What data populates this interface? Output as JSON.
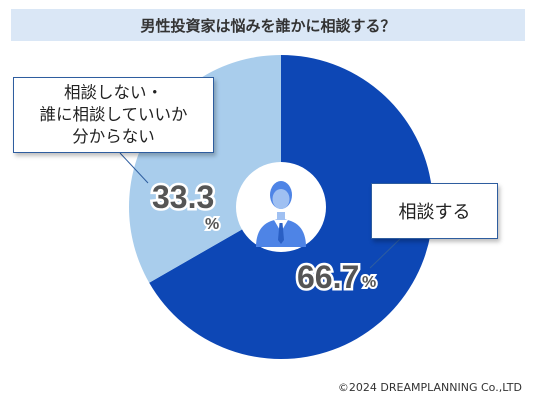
{
  "title": "男性投資家は悩みを誰かに相談する？",
  "chart_data": {
    "type": "pie",
    "slices": [
      {
        "label": "相談する",
        "value": 66.7,
        "value_text": "66.7",
        "unit": "%",
        "color": "#0d47b5"
      },
      {
        "label": "相談しない・\n誰に相談していいか\n分からない",
        "value": 33.3,
        "value_text": "33.3",
        "unit": "%",
        "color": "#a9cdec"
      }
    ],
    "center_icon": "businessman-icon",
    "legend_position": "callouts"
  },
  "copyright": "©2024 DREAMPLANNING Co.,LTD"
}
